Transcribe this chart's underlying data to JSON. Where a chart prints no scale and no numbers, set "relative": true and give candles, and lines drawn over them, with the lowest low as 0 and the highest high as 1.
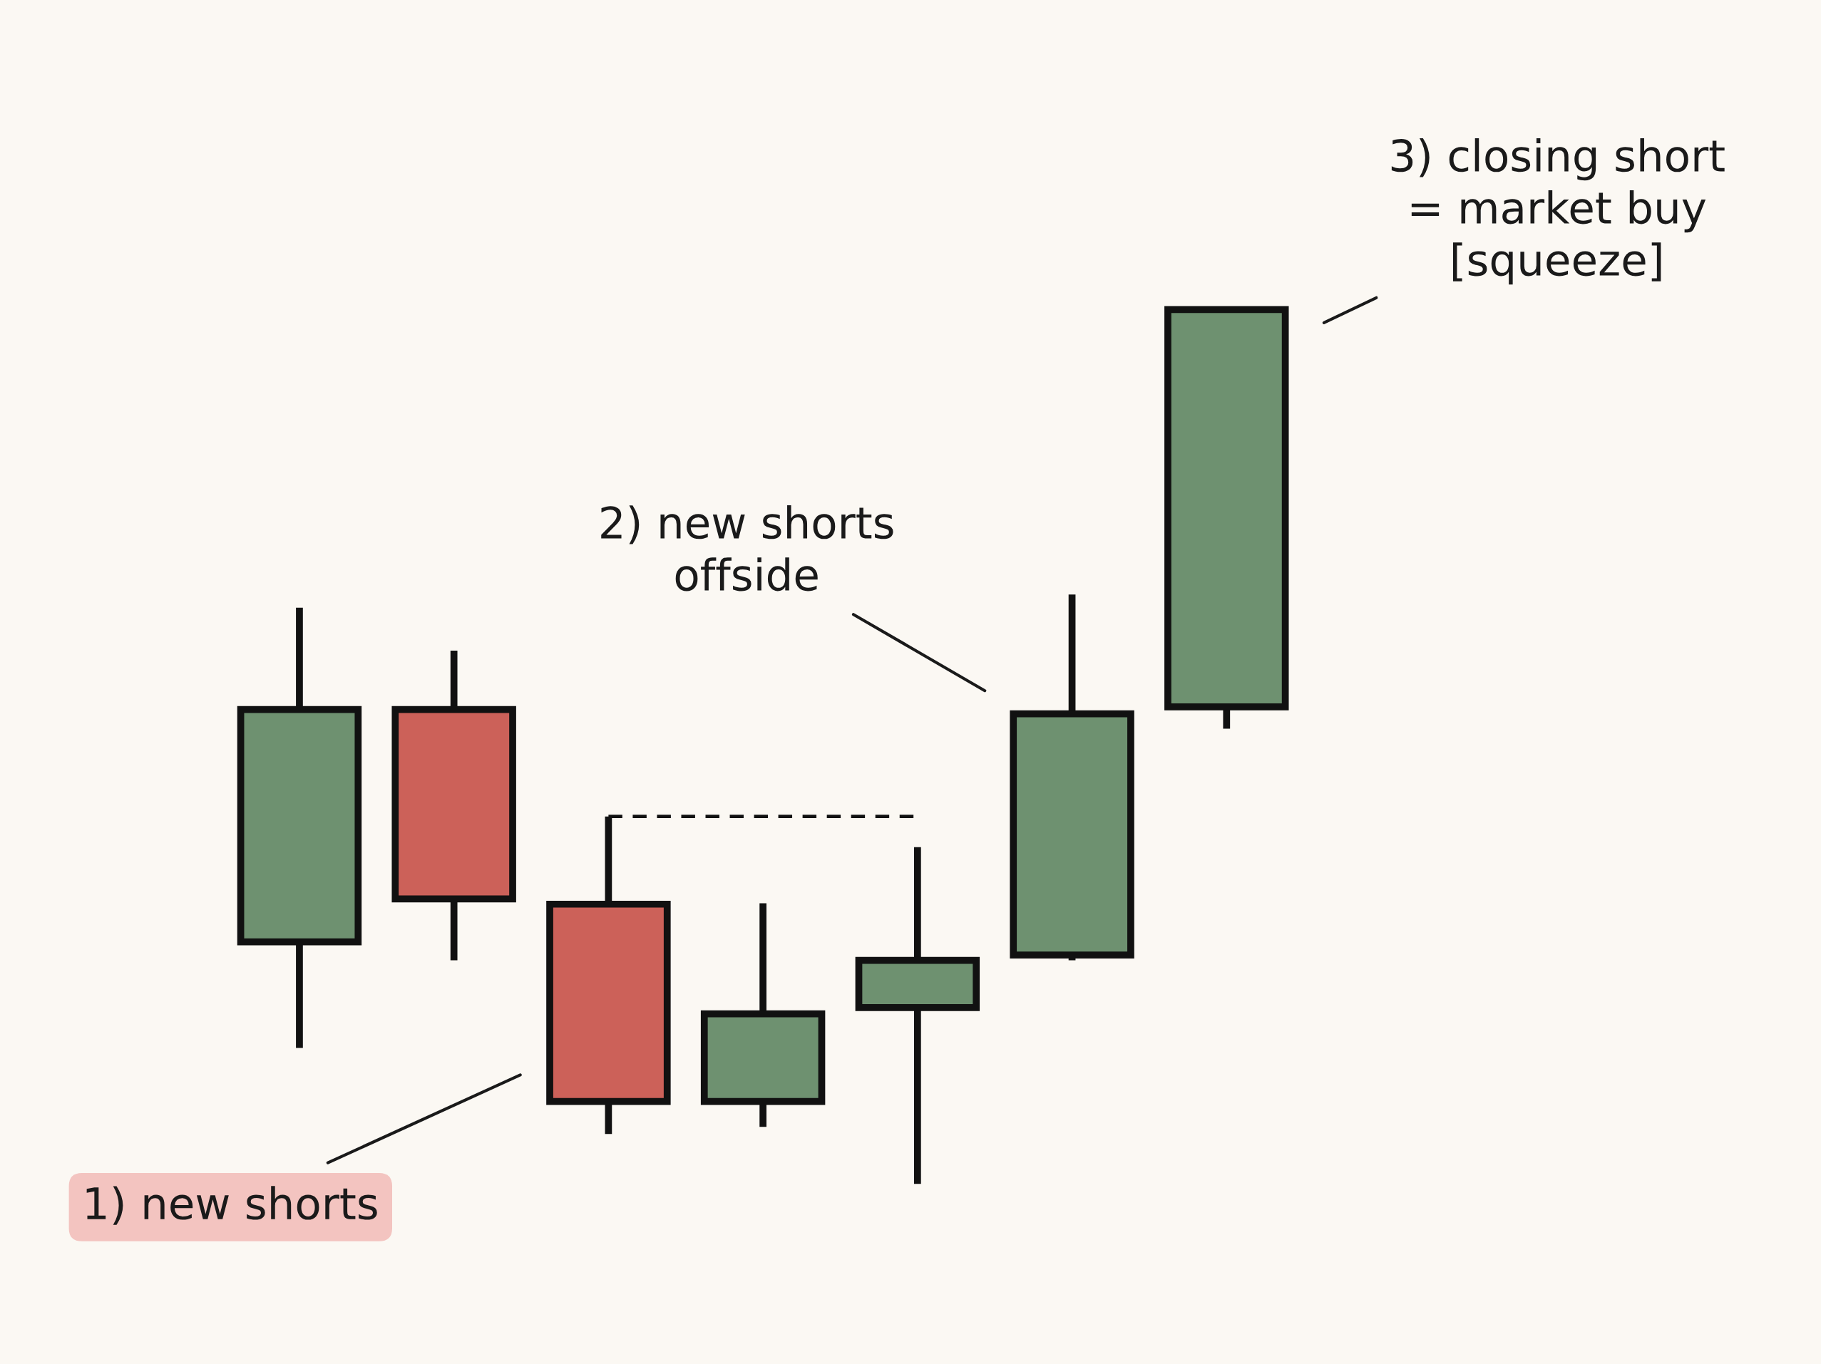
{
  "chart_data": {
    "type": "candlestick",
    "relative": true,
    "categories": [
      null,
      null,
      null,
      null,
      null,
      null,
      null
    ],
    "ohlc": [
      [
        0.276,
        0.657,
        0.155,
        0.541
      ],
      [
        0.541,
        0.608,
        0.255,
        0.325
      ],
      [
        0.319,
        0.419,
        0.057,
        0.094
      ],
      [
        0.094,
        0.32,
        0.065,
        0.194
      ],
      [
        0.201,
        0.384,
        0.0,
        0.255
      ],
      [
        0.261,
        0.672,
        0.255,
        0.536
      ],
      [
        0.544,
        1.0,
        0.519,
        0.997
      ]
    ],
    "colors": [
      "#6e9170",
      "#cc6159",
      "#cc6159",
      "#6e9170",
      "#6e9170",
      "#6e9170",
      "#6e9170"
    ],
    "series": [
      {
        "type": "line",
        "color": "#111111",
        "line_style": "dashed",
        "values": [
          null,
          null,
          0.419,
          0.419,
          0.419,
          null,
          null
        ]
      }
    ],
    "annotations": [
      "1) new shorts",
      "2) new shorts\noffside",
      "3) closing short\n= market buy\n[squeeze]"
    ],
    "grid": false,
    "legend": false
  }
}
